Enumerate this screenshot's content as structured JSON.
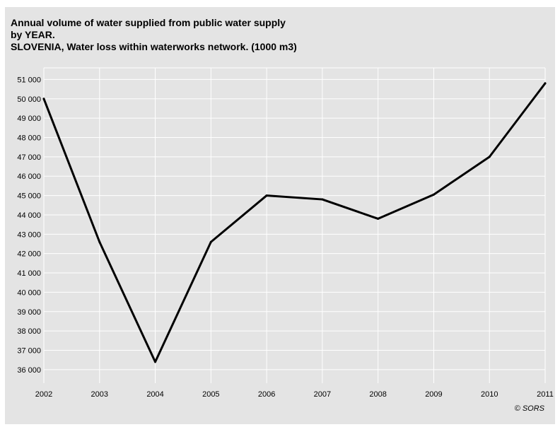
{
  "chart_data": {
    "type": "line",
    "title_lines": [
      "Annual volume of water supplied from public water supply",
      "by YEAR.",
      "SLOVENIA, Water loss within waterworks network. (1000 m3)"
    ],
    "x": [
      "2002",
      "2003",
      "2004",
      "2005",
      "2006",
      "2007",
      "2008",
      "2009",
      "2010",
      "2011"
    ],
    "series": [
      {
        "values": [
          50000,
          42600,
          36400,
          42600,
          45000,
          44800,
          43800,
          45050,
          47000,
          50800
        ]
      }
    ],
    "ylim": [
      35300,
      51600
    ],
    "yticks": [
      36000,
      37000,
      38000,
      39000,
      40000,
      41000,
      42000,
      43000,
      44000,
      45000,
      46000,
      47000,
      48000,
      49000,
      50000,
      51000
    ],
    "ytick_labels": [
      "36 000",
      "37 000",
      "38 000",
      "39 000",
      "40 000",
      "41 000",
      "42 000",
      "43 000",
      "44 000",
      "45 000",
      "46 000",
      "47 000",
      "48 000",
      "49 000",
      "50 000",
      "51 000"
    ],
    "grid": true,
    "legend": "none",
    "line_color": "#000000",
    "grid_color": "#ffffff",
    "background": "#e4e4e4"
  },
  "credit": "© SORS"
}
